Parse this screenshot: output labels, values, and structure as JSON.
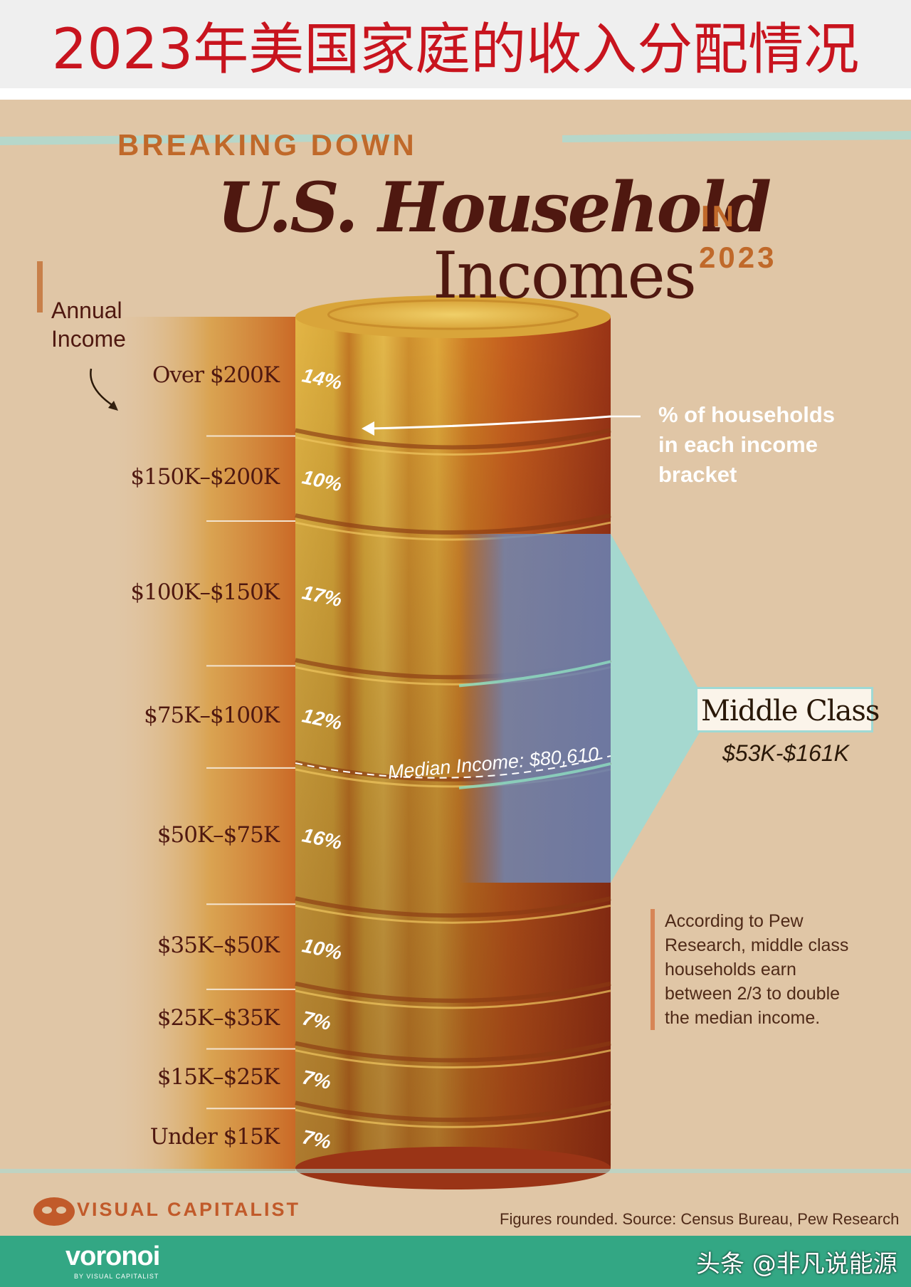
{
  "banner": {
    "title": "2023年美国家庭的收入分配情况"
  },
  "poster": {
    "kicker": "BREAKING DOWN",
    "title_line1": "U.S. Household",
    "title_line2": "Incomes",
    "in_word": "IN",
    "year_word": "2023"
  },
  "colors": {
    "background": "#e0c6a6",
    "title": "#4f1810",
    "accent": "#c0692a",
    "middle_class": "#9fd9d4",
    "coin_gold": "#d9a93a",
    "coin_orange": "#c96520",
    "coin_dark": "#8e2e12"
  },
  "chart_data": {
    "type": "bar",
    "chart_style": "stacked coin column",
    "axis_label": [
      "Annual",
      "Income"
    ],
    "categories": [
      "Over $200K",
      "$150K–$200K",
      "$100K–$150K",
      "$75K–$100K",
      "$50K–$75K",
      "$35K–$50K",
      "$25K–$35K",
      "$15K–$25K",
      "Under $15K"
    ],
    "values": [
      14,
      10,
      17,
      12,
      16,
      10,
      7,
      7,
      7
    ],
    "value_labels": [
      "14%",
      "10%",
      "17%",
      "12%",
      "16%",
      "10%",
      "7%",
      "7%",
      "7%"
    ],
    "unit": "%",
    "annotation": [
      "% of households",
      "in each income",
      "bracket"
    ],
    "median_label": "Median Income: $80,610",
    "middle_class": {
      "label": "Middle Class",
      "range": "$53K-$161K"
    },
    "note": [
      "According to Pew",
      "Research, middle class",
      "households earn",
      "between 2/3 to double",
      "the median income."
    ]
  },
  "footer": {
    "brand": "VISUAL CAPITALIST",
    "source": "Figures rounded. Source: Census Bureau, Pew Research",
    "voronoi": "voronoi",
    "voronoi_sub": "BY VISUAL CAPITALIST",
    "watermark": "头条 @非凡说能源"
  }
}
